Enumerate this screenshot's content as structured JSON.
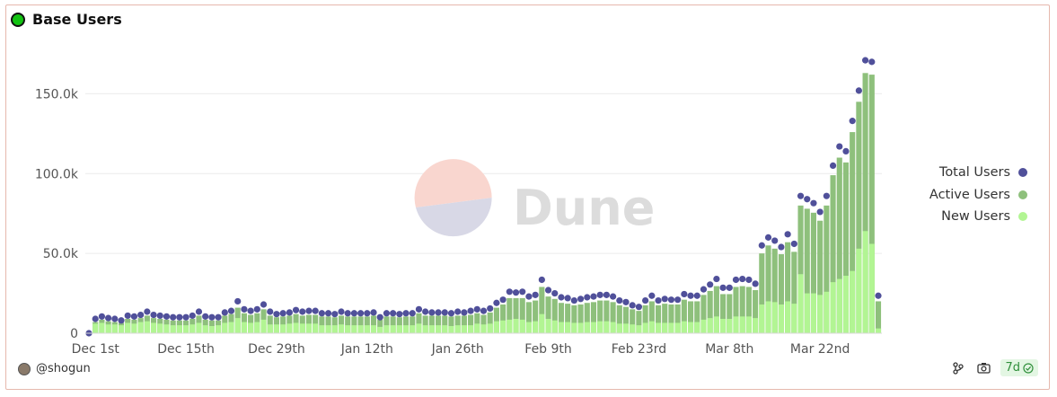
{
  "header": {
    "title": "Base Users"
  },
  "watermark": {
    "text": "Dune"
  },
  "footer": {
    "author": "@shogun",
    "refresh": "7d"
  },
  "colors": {
    "total": "#50509a",
    "active": "#8ec07c",
    "new": "#b2f593",
    "status": "#13c313"
  },
  "chart_data": {
    "type": "bar",
    "title": "Base Users",
    "x_start": "2023-11-30",
    "x_ticks": [
      "Dec 1st",
      "Dec 15th",
      "Dec 29th",
      "Jan 12th",
      "Jan 26th",
      "Feb 9th",
      "Feb 23rd",
      "Mar 8th",
      "Mar 22nd"
    ],
    "ylim": [
      0,
      175000
    ],
    "y_ticks": [
      {
        "value": 0,
        "label": "0"
      },
      {
        "value": 50000,
        "label": "50.0k"
      },
      {
        "value": 100000,
        "label": "100.0k"
      },
      {
        "value": 150000,
        "label": "150.0k"
      }
    ],
    "legend": {
      "position": "right"
    },
    "grid": true,
    "series": [
      {
        "name": "Total Users",
        "style": "point",
        "values": [
          0,
          9000,
          10500,
          9500,
          9000,
          8000,
          11000,
          10500,
          11500,
          13500,
          11500,
          11000,
          10500,
          10000,
          10000,
          10000,
          11000,
          13500,
          10500,
          10000,
          10000,
          13000,
          14000,
          20000,
          15000,
          14000,
          15000,
          18000,
          13500,
          12000,
          12500,
          13000,
          14500,
          13500,
          14000,
          14000,
          12500,
          12500,
          12000,
          13500,
          12500,
          12500,
          12500,
          12500,
          13000,
          10000,
          12500,
          12500,
          12000,
          12500,
          12500,
          15000,
          13500,
          13000,
          13000,
          13000,
          12500,
          13500,
          13000,
          14000,
          15000,
          14000,
          15500,
          19000,
          21000,
          26000,
          25500,
          26000,
          23000,
          24000,
          33500,
          27000,
          25000,
          22500,
          22000,
          20500,
          21500,
          22500,
          23000,
          24000,
          24000,
          23000,
          20500,
          19500,
          17500,
          16500,
          20500,
          23500,
          20500,
          21500,
          21000,
          21000,
          24500,
          23500,
          23500,
          27500,
          30500,
          34000,
          28500,
          28500,
          33500,
          34000,
          33500,
          31000,
          55000,
          60000,
          58000,
          54000,
          62000,
          56000,
          86000,
          84000,
          81500,
          76000,
          86000,
          105000,
          117000,
          114000,
          133000,
          152000,
          171000,
          170000,
          23500
        ]
      },
      {
        "name": "Active Users",
        "style": "bar",
        "values": [
          0,
          7000,
          8500,
          7500,
          7000,
          6500,
          9000,
          8500,
          9500,
          11000,
          9500,
          9000,
          8500,
          8000,
          8000,
          8000,
          9000,
          11000,
          8500,
          8000,
          8000,
          11000,
          12000,
          16000,
          12500,
          11500,
          12500,
          15000,
          11000,
          10000,
          10500,
          11000,
          12000,
          11000,
          11500,
          11500,
          10500,
          10500,
          10000,
          11000,
          10500,
          10500,
          10500,
          10500,
          11000,
          8500,
          10500,
          10500,
          10000,
          10500,
          10500,
          12500,
          11000,
          11000,
          11000,
          11000,
          10500,
          11000,
          11000,
          11500,
          12500,
          11500,
          13000,
          16000,
          18000,
          22000,
          22000,
          22000,
          19500,
          20500,
          29000,
          23000,
          21500,
          19000,
          18500,
          17500,
          18000,
          19000,
          19500,
          20500,
          20500,
          19500,
          17500,
          16500,
          15000,
          14000,
          17500,
          20000,
          17500,
          18500,
          18000,
          18000,
          21000,
          20000,
          20000,
          24000,
          26500,
          29500,
          24500,
          24500,
          29000,
          29500,
          29000,
          27000,
          50000,
          55000,
          53000,
          49500,
          57000,
          51000,
          80000,
          78000,
          75500,
          70500,
          80000,
          99000,
          110000,
          107000,
          126000,
          145000,
          163000,
          162000,
          20000
        ]
      },
      {
        "name": "New Users",
        "style": "bar",
        "values": [
          0,
          6000,
          6500,
          5500,
          5500,
          5000,
          6500,
          6000,
          7000,
          7500,
          6500,
          6000,
          5500,
          5000,
          5000,
          5000,
          5500,
          6500,
          5000,
          4500,
          5000,
          6500,
          7000,
          9500,
          7000,
          6500,
          7000,
          8500,
          5500,
          5500,
          5500,
          6000,
          6500,
          6000,
          6000,
          6000,
          5000,
          5000,
          5000,
          5500,
          5000,
          5000,
          5000,
          5000,
          5000,
          4000,
          5000,
          5000,
          5000,
          5000,
          5000,
          6000,
          5000,
          5000,
          5000,
          5000,
          4500,
          5000,
          5000,
          5000,
          6000,
          5500,
          6000,
          7500,
          8000,
          8500,
          9000,
          8500,
          7000,
          7500,
          12000,
          9000,
          8000,
          7000,
          7000,
          6500,
          6500,
          7000,
          7000,
          7500,
          7500,
          7000,
          6000,
          6000,
          5500,
          5000,
          6500,
          7500,
          6500,
          6500,
          6500,
          6500,
          7500,
          7000,
          7000,
          8500,
          9500,
          10500,
          9000,
          9000,
          10500,
          10500,
          10500,
          9500,
          18000,
          20000,
          19500,
          18000,
          20000,
          18500,
          37000,
          25000,
          25000,
          24000,
          26000,
          32000,
          34000,
          36000,
          39000,
          53000,
          64000,
          56000,
          3000
        ]
      }
    ]
  }
}
